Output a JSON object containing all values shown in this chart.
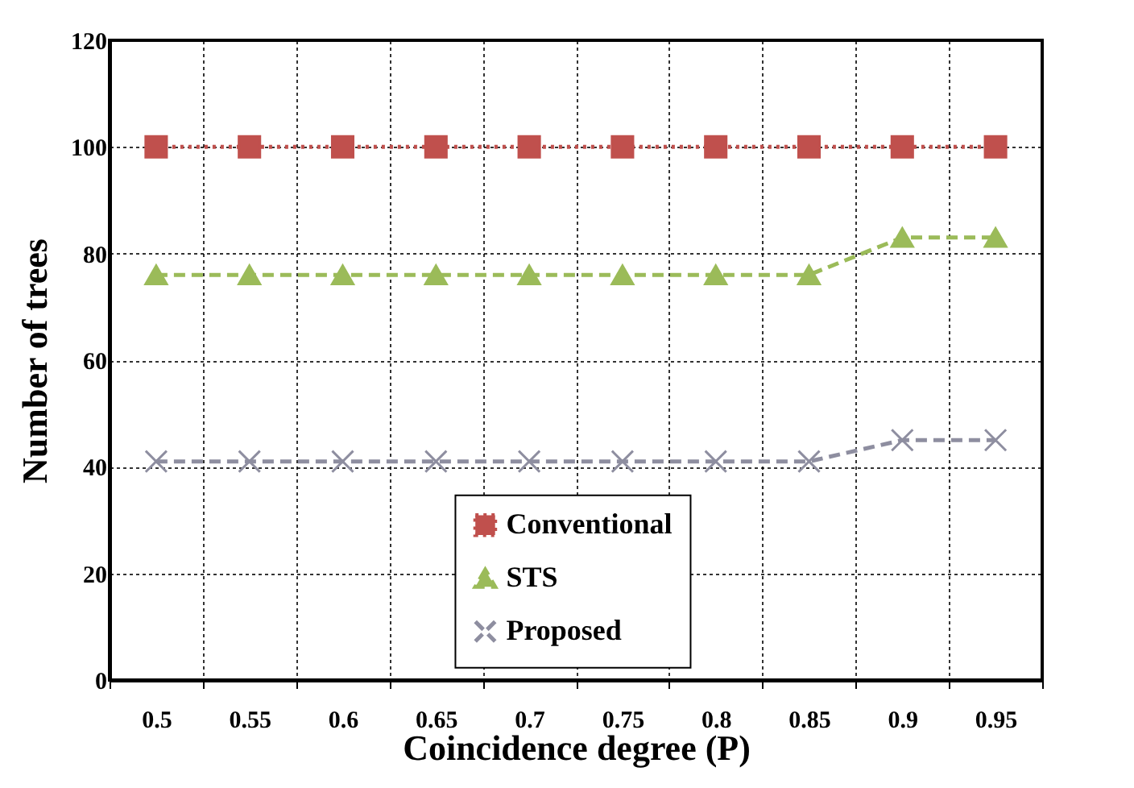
{
  "chart_data": {
    "type": "line",
    "xlabel": "Coincidence degree (P)",
    "ylabel": "Number of trees",
    "categories": [
      "0.5",
      "0.55",
      "0.6",
      "0.65",
      "0.7",
      "0.75",
      "0.8",
      "0.85",
      "0.9",
      "0.95"
    ],
    "series": [
      {
        "name": "Conventional",
        "color": "#c0504d",
        "marker": "square",
        "line_style": "dotted",
        "values": [
          100,
          100,
          100,
          100,
          100,
          100,
          100,
          100,
          100,
          100
        ]
      },
      {
        "name": "STS",
        "color": "#9bbb59",
        "marker": "triangle",
        "line_style": "dashed",
        "values": [
          76,
          76,
          76,
          76,
          76,
          76,
          76,
          76,
          83,
          83
        ]
      },
      {
        "name": "Proposed",
        "color": "#8e8ea0",
        "marker": "cross",
        "line_style": "dashed",
        "values": [
          41,
          41,
          41,
          41,
          41,
          41,
          41,
          41,
          45,
          45
        ]
      }
    ],
    "ylim": [
      0,
      120
    ],
    "yticks": [
      0,
      20,
      40,
      60,
      80,
      100,
      120
    ],
    "grid": true,
    "legend": "bottom"
  }
}
